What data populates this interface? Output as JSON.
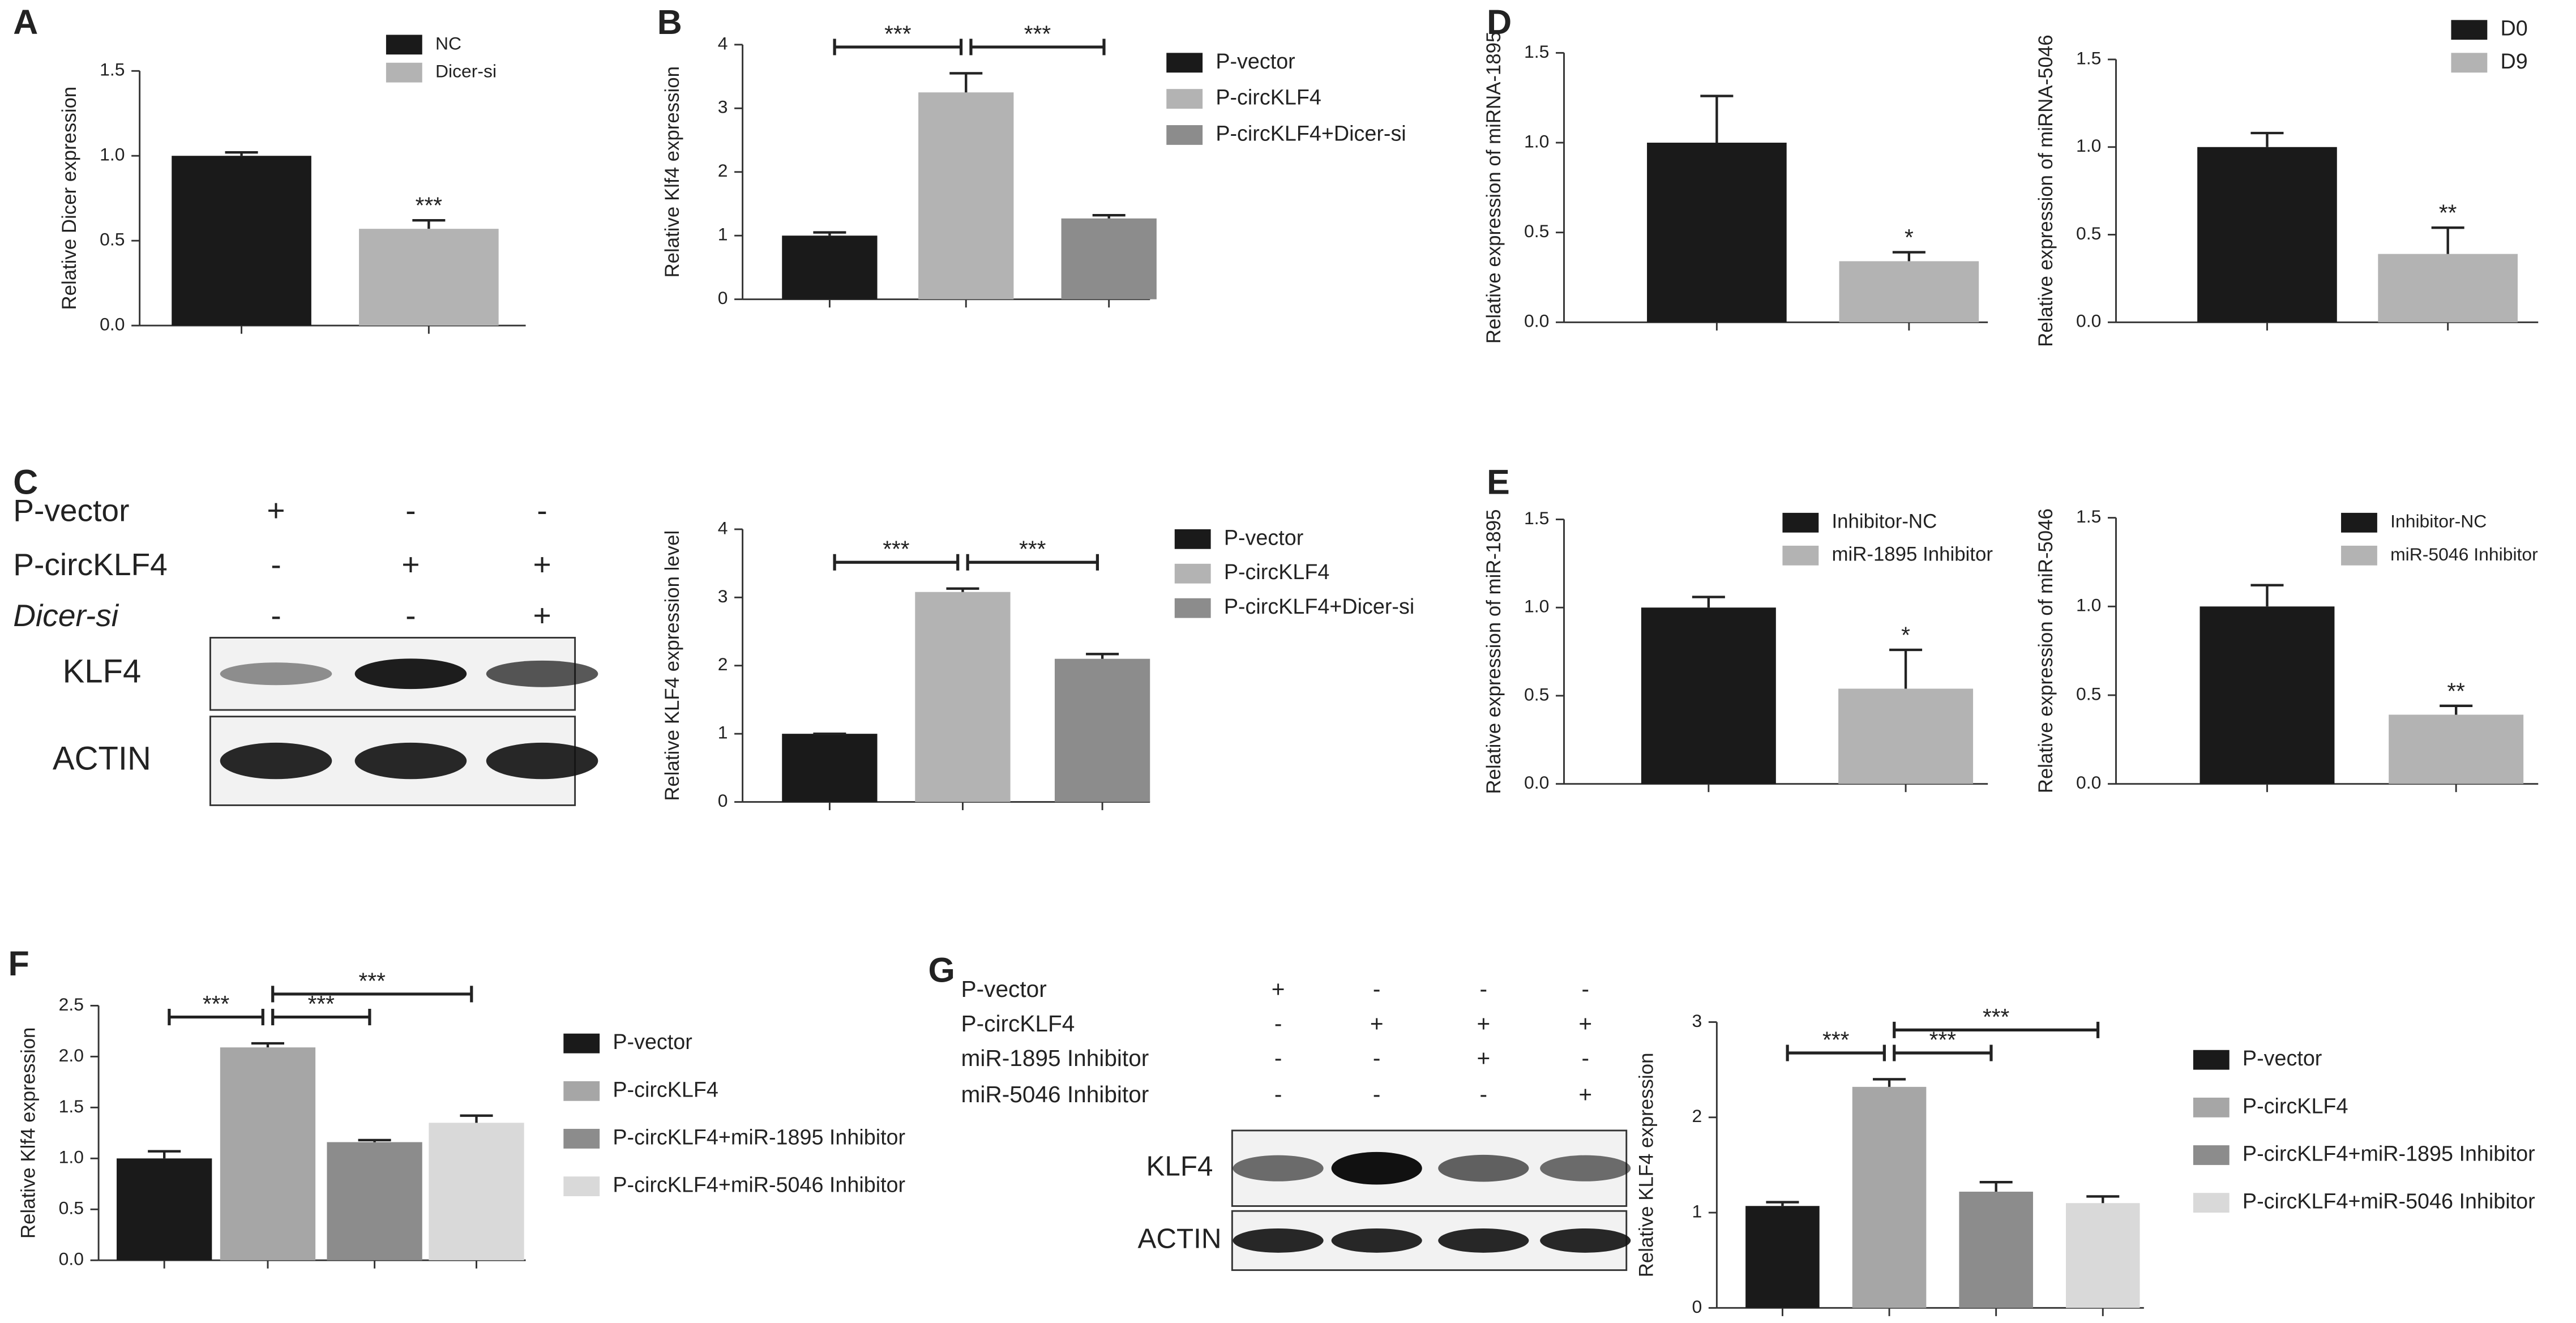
{
  "panel_labels": [
    "A",
    "B",
    "C",
    "D",
    "E",
    "F",
    "G"
  ],
  "chart_data": [
    {
      "type": "bar",
      "ylabel": "Relative Dicer expression",
      "categories": [
        "NC",
        "Dicer-si"
      ],
      "colors": [
        "#1a1a1a",
        "#b3b3b3"
      ],
      "values": [
        1.0,
        0.57
      ],
      "errors": [
        0.02,
        0.05
      ],
      "annotations": [
        null,
        "***"
      ],
      "ylim": [
        0,
        1.5
      ],
      "yticks": [
        {
          "value": 0,
          "label": "0.0"
        },
        0.5,
        {
          "value": 1,
          "label": "1.0"
        },
        1.5
      ]
    },
    {
      "type": "bar",
      "ylabel": "Relative Klf4 expression",
      "categories": [
        "P-vector",
        "P-circKLF4",
        "P-circKLF4+Dicer-si"
      ],
      "colors": [
        "#1a1a1a",
        "#b3b3b3",
        "#8c8c8c"
      ],
      "values": [
        1.0,
        3.25,
        1.27
      ],
      "errors": [
        0.05,
        0.3,
        0.05
      ],
      "brackets": [
        {
          "from": 0,
          "to": 1,
          "label": "***"
        },
        {
          "from": 1,
          "to": 2,
          "label": "***"
        }
      ],
      "ylim": [
        0,
        4
      ],
      "yticks": [
        0,
        1,
        2,
        3,
        4
      ]
    },
    {
      "type": "bar",
      "ylabel": "Relative expression of miRNA-1895",
      "colors": [
        "#1a1a1a",
        "#b3b3b3"
      ],
      "values": [
        1.0,
        0.34
      ],
      "errors": [
        0.26,
        0.05
      ],
      "annotations": [
        null,
        "*"
      ],
      "ylim": [
        0,
        1.5
      ],
      "yticks": [
        {
          "value": 0,
          "label": "0.0"
        },
        0.5,
        {
          "value": 1,
          "label": "1.0"
        },
        1.5
      ]
    },
    {
      "type": "bar",
      "ylabel": "Relative expression of miRNA-5046",
      "categories": [
        "D0",
        "D9"
      ],
      "colors": [
        "#1a1a1a",
        "#b3b3b3"
      ],
      "values": [
        1.0,
        0.39
      ],
      "errors": [
        0.08,
        0.15
      ],
      "annotations": [
        null,
        "**"
      ],
      "ylim": [
        0,
        1.5
      ],
      "yticks": [
        {
          "value": 0,
          "label": "0.0"
        },
        0.5,
        {
          "value": 1,
          "label": "1.0"
        },
        1.5
      ]
    },
    {
      "type": "bar",
      "ylabel": "Relative KLF4 expression level",
      "categories": [
        "P-vector",
        "P-circKLF4",
        "P-circKLF4+Dicer-si"
      ],
      "colors": [
        "#1a1a1a",
        "#b3b3b3",
        "#8c8c8c"
      ],
      "values": [
        1.0,
        3.08,
        2.1
      ],
      "errors": [
        0,
        0.05,
        0.07
      ],
      "brackets": [
        {
          "from": 0,
          "to": 1,
          "label": "***"
        },
        {
          "from": 1,
          "to": 2,
          "label": "***"
        }
      ],
      "ylim": [
        0,
        4
      ],
      "yticks": [
        0,
        1,
        2,
        3,
        4
      ]
    },
    {
      "type": "bar",
      "ylabel": "Relative expression of miR-1895",
      "categories": [
        "Inhibitor-NC",
        "miR-1895 Inhibitor"
      ],
      "colors": [
        "#1a1a1a",
        "#b3b3b3"
      ],
      "values": [
        1.0,
        0.54
      ],
      "errors": [
        0.06,
        0.22
      ],
      "annotations": [
        null,
        "*"
      ],
      "ylim": [
        0,
        1.5
      ],
      "yticks": [
        {
          "value": 0,
          "label": "0.0"
        },
        0.5,
        {
          "value": 1,
          "label": "1.0"
        },
        1.5
      ]
    },
    {
      "type": "bar",
      "ylabel": "Relative expression of miR-5046",
      "categories": [
        "Inhibitor-NC",
        "miR-5046 Inhibitor"
      ],
      "colors": [
        "#1a1a1a",
        "#b3b3b3"
      ],
      "values": [
        1.0,
        0.39
      ],
      "errors": [
        0.12,
        0.05
      ],
      "annotations": [
        null,
        "**"
      ],
      "ylim": [
        0,
        1.5
      ],
      "yticks": [
        {
          "value": 0,
          "label": "0.0"
        },
        0.5,
        {
          "value": 1,
          "label": "1.0"
        },
        1.5
      ]
    },
    {
      "type": "bar",
      "ylabel": "Relative Klf4 expression",
      "categories": [
        "P-vector",
        "P-circKLF4",
        "P-circKLF4+miR-1895 Inhibitor",
        "P-circKLF4+miR-5046 Inhibitor"
      ],
      "colors": [
        "#1a1a1a",
        "#a6a6a6",
        "#8c8c8c",
        "#d9d9d9"
      ],
      "values": [
        1.0,
        2.09,
        1.16,
        1.35
      ],
      "errors": [
        0.07,
        0.04,
        0.02,
        0.07
      ],
      "brackets": [
        {
          "from": 0,
          "to": 1,
          "label": "***"
        },
        {
          "from": 1,
          "to": 2,
          "label": "***"
        },
        {
          "from": 1,
          "to": 3,
          "label": "***"
        }
      ],
      "ylim": [
        0,
        2.5
      ],
      "yticks": [
        {
          "value": 0,
          "label": "0.0"
        },
        0.5,
        {
          "value": 1,
          "label": "1.0"
        },
        1.5,
        {
          "value": 2,
          "label": "2.0"
        },
        2.5
      ]
    },
    {
      "type": "bar",
      "ylabel": "Relative KLF4 expression",
      "categories": [
        "P-vector",
        "P-circKLF4",
        "P-circKLF4+miR-1895 Inhibitor",
        "P-circKLF4+miR-5046 Inhibitor"
      ],
      "colors": [
        "#1a1a1a",
        "#a6a6a6",
        "#8c8c8c",
        "#d9d9d9"
      ],
      "values": [
        1.07,
        2.32,
        1.22,
        1.1
      ],
      "errors": [
        0.04,
        0.08,
        0.1,
        0.07
      ],
      "brackets": [
        {
          "from": 0,
          "to": 1,
          "label": "***"
        },
        {
          "from": 1,
          "to": 2,
          "label": "***"
        },
        {
          "from": 1,
          "to": 3,
          "label": "***"
        }
      ],
      "ylim": [
        0,
        3
      ],
      "yticks": [
        0,
        1,
        2,
        3
      ]
    }
  ],
  "blots": [
    {
      "rows": [
        {
          "label": "P-vector",
          "signs": [
            "+",
            "-",
            "-"
          ]
        },
        {
          "label": "P-circKLF4",
          "signs": [
            "-",
            "+",
            "+"
          ]
        },
        {
          "label": "Dicer-si",
          "signs": [
            "-",
            "-",
            "+"
          ]
        }
      ],
      "bands": [
        "KLF4",
        "ACTIN"
      ]
    },
    {
      "rows": [
        {
          "label": "P-vector",
          "signs": [
            "+",
            "-",
            "-",
            "-"
          ]
        },
        {
          "label": "P-circKLF4",
          "signs": [
            "-",
            "+",
            "+",
            "+"
          ]
        },
        {
          "label": "miR-1895 Inhibitor",
          "signs": [
            "-",
            "-",
            "+",
            "-"
          ]
        },
        {
          "label": "miR-5046 Inhibitor",
          "signs": [
            "-",
            "-",
            "-",
            "+"
          ]
        }
      ],
      "bands": [
        "KLF4",
        "ACTIN"
      ]
    }
  ]
}
